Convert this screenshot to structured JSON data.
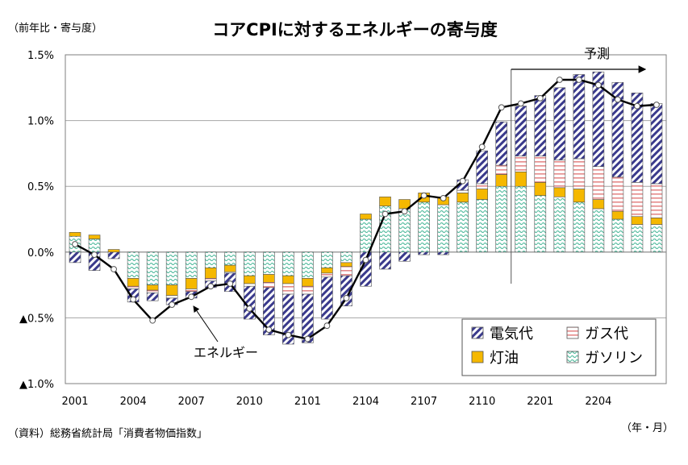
{
  "chart_data": {
    "type": "bar",
    "title": "コアCPIに対するエネルギーの寄与度",
    "ylabel": "（前年比・寄与度）",
    "xlabel": "（年・月）",
    "source": "（資料）総務省統計局「消費者物価指数」",
    "forecast_label": "予測",
    "line_annotation": "エネルギー",
    "ylim": [
      -1.0,
      1.5
    ],
    "yticks": [
      {
        "value": 1.5,
        "label": "1.5%"
      },
      {
        "value": 1.0,
        "label": "1.0%"
      },
      {
        "value": 0.5,
        "label": "0.5%"
      },
      {
        "value": 0.0,
        "label": "0.0%"
      },
      {
        "value": -0.5,
        "label": "▲0.5%"
      },
      {
        "value": -1.0,
        "label": "▲1.0%"
      }
    ],
    "xtick_labels": [
      {
        "index": 0,
        "label": "2001"
      },
      {
        "index": 3,
        "label": "2004"
      },
      {
        "index": 6,
        "label": "2007"
      },
      {
        "index": 9,
        "label": "2010"
      },
      {
        "index": 12,
        "label": "2101"
      },
      {
        "index": 15,
        "label": "2104"
      },
      {
        "index": 18,
        "label": "2107"
      },
      {
        "index": 21,
        "label": "2110"
      },
      {
        "index": 24,
        "label": "2201"
      },
      {
        "index": 27,
        "label": "2204"
      }
    ],
    "stacked": true,
    "grid": true,
    "legend_position": "bottom-right",
    "forecast_start_index": 23,
    "series": [
      {
        "name": "電気代",
        "key": "denki",
        "values": [
          -0.08,
          -0.14,
          -0.05,
          -0.1,
          -0.06,
          -0.05,
          -0.05,
          -0.05,
          -0.14,
          -0.25,
          -0.36,
          -0.38,
          -0.37,
          -0.32,
          -0.23,
          -0.26,
          -0.13,
          -0.07,
          -0.02,
          -0.02,
          0.08,
          0.25,
          0.33,
          0.38,
          0.46,
          0.55,
          0.64,
          0.72,
          0.72,
          0.68,
          0.61
        ]
      },
      {
        "name": "ガス代",
        "key": "gas",
        "values": [
          0,
          0,
          0,
          -0.02,
          -0.02,
          -0.02,
          -0.02,
          -0.02,
          -0.01,
          -0.02,
          -0.04,
          -0.08,
          -0.06,
          -0.03,
          -0.07,
          0,
          0,
          0,
          0,
          0,
          0.02,
          0.04,
          0.07,
          0.12,
          0.2,
          0.21,
          0.23,
          0.25,
          0.26,
          0.26,
          0.26
        ]
      },
      {
        "name": "灯油",
        "key": "touyu",
        "values": [
          0.03,
          0.03,
          0.02,
          -0.06,
          -0.04,
          -0.08,
          -0.08,
          -0.08,
          -0.05,
          -0.06,
          -0.06,
          -0.06,
          -0.06,
          -0.04,
          -0.03,
          0.04,
          0.07,
          0.07,
          0.07,
          0.06,
          0.07,
          0.08,
          0.09,
          0.11,
          0.1,
          0.07,
          0.1,
          0.07,
          0.06,
          0.06,
          0.05
        ]
      },
      {
        "name": "ガソリン",
        "key": "gasoline",
        "values": [
          0.12,
          0.1,
          0.0,
          -0.2,
          -0.25,
          -0.25,
          -0.2,
          -0.12,
          -0.1,
          -0.18,
          -0.17,
          -0.18,
          -0.2,
          -0.12,
          -0.08,
          0.25,
          0.35,
          0.33,
          0.38,
          0.36,
          0.38,
          0.4,
          0.5,
          0.5,
          0.43,
          0.42,
          0.38,
          0.33,
          0.25,
          0.21,
          0.21
        ]
      },
      {
        "name": "エネルギー",
        "key": "energy",
        "type": "line",
        "values": [
          0.06,
          -0.02,
          -0.13,
          -0.36,
          -0.52,
          -0.4,
          -0.34,
          -0.26,
          -0.24,
          -0.43,
          -0.59,
          -0.63,
          -0.66,
          -0.56,
          -0.35,
          -0.06,
          0.29,
          0.31,
          0.43,
          0.41,
          0.54,
          0.8,
          1.1,
          1.13,
          1.17,
          1.31,
          1.31,
          1.27,
          1.16,
          1.11,
          1.12
        ]
      }
    ],
    "legend": [
      {
        "key": "denki",
        "name": "電気代"
      },
      {
        "key": "gas",
        "name": "ガス代"
      },
      {
        "key": "touyu",
        "name": "灯油"
      },
      {
        "key": "gasoline",
        "name": "ガソリン"
      }
    ],
    "colors": {
      "denki_stripe": "#3a3a8c",
      "gas_stripe": "#e58a8a",
      "touyu": "#f5b800",
      "gasoline_pattern": "#4bb89a",
      "line": "#000000",
      "grid": "#a6a6a6"
    }
  }
}
